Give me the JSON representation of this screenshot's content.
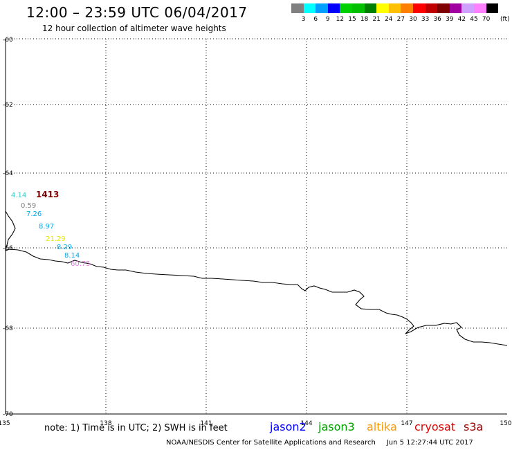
{
  "header": {
    "title": "12:00 – 23:59 UTC 06/04/2017",
    "subtitle": "12 hour collection of altimeter wave heights"
  },
  "scale": {
    "colors": [
      "#808080",
      "#00ffff",
      "#00a0ff",
      "#0000ff",
      "#00d000",
      "#00c000",
      "#008000",
      "#ffff00",
      "#ffc000",
      "#ff8000",
      "#ff0000",
      "#c00000",
      "#800000",
      "#a000a0",
      "#d0a0ff",
      "#ff80ff",
      "#000000"
    ],
    "labels": [
      "3",
      "6",
      "9",
      "12",
      "15",
      "18",
      "21",
      "24",
      "27",
      "30",
      "33",
      "36",
      "39",
      "42",
      "45",
      "70"
    ],
    "unit": "(ft)"
  },
  "axes": {
    "lon_ticks": [
      "135",
      "138",
      "141",
      "144",
      "147",
      "150"
    ],
    "lat_ticks": [
      "-60",
      "-62",
      "-64",
      "-66",
      "-68",
      "-70"
    ]
  },
  "observations": [
    {
      "text": "4.14",
      "color": "#33cccc"
    },
    {
      "text": "1413",
      "color": "#800000"
    },
    {
      "text": "0.59",
      "color": "#808080"
    },
    {
      "text": "7.26",
      "color": "#00aaee"
    },
    {
      "text": "8.97",
      "color": "#00aaee"
    },
    {
      "text": "21.29",
      "color": "#e6e600"
    },
    {
      "text": "8.29",
      "color": "#00aaee"
    },
    {
      "text": "8.14",
      "color": "#00aaee"
    },
    {
      "text": "60.75",
      "color": "#e080e0"
    }
  ],
  "footer": {
    "note": "note: 1) Time is in UTC; 2) SWH is in feet",
    "satellites": [
      {
        "name": "jason2",
        "color": "#0000ff"
      },
      {
        "name": "jason3",
        "color": "#00a000"
      },
      {
        "name": "altika",
        "color": "#ff9900"
      },
      {
        "name": "cryosat",
        "color": "#dd0000"
      },
      {
        "name": "s3a",
        "color": "#990000"
      }
    ],
    "credit": "NOAA/NESDIS Center for Satellite Applications and Research",
    "timestamp": "Jun  5 12:27:44 UTC 2017"
  }
}
